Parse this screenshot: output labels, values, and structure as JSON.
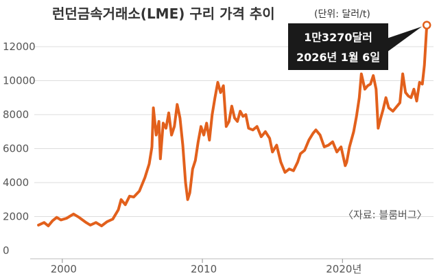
{
  "chart_data": {
    "type": "line",
    "title": "런던금속거래소(LME) 구리 가격 추이",
    "unit_label": "(단위: 달러/t)",
    "source_label": "〈자료: 블룸버그〉",
    "y_ticks": [
      "12000",
      "10000",
      "8000",
      "6000",
      "4000",
      "2000",
      "0"
    ],
    "y_tick_values": [
      12000,
      10000,
      8000,
      6000,
      4000,
      2000,
      0
    ],
    "x_ticks": [
      {
        "label": "2000",
        "value": 2000
      },
      {
        "label": "2010",
        "value": 2010
      },
      {
        "label": "2020년",
        "value": 2020
      }
    ],
    "ylim": [
      0,
      13500
    ],
    "xlim": [
      1998,
      2026.5
    ],
    "grid": true,
    "annotation": {
      "line1": "1만3270달러",
      "line2": "2026년 1월 6일",
      "x": 2026.02,
      "y": 13270
    },
    "series": [
      {
        "color": "#e2601c",
        "points": [
          [
            1998.3,
            1500
          ],
          [
            1998.7,
            1650
          ],
          [
            1999.0,
            1450
          ],
          [
            1999.3,
            1750
          ],
          [
            1999.6,
            1950
          ],
          [
            1999.9,
            1800
          ],
          [
            2000.3,
            1900
          ],
          [
            2000.8,
            2150
          ],
          [
            2001.2,
            1950
          ],
          [
            2001.7,
            1650
          ],
          [
            2002.0,
            1500
          ],
          [
            2002.4,
            1650
          ],
          [
            2002.8,
            1450
          ],
          [
            2003.2,
            1700
          ],
          [
            2003.6,
            1850
          ],
          [
            2004.0,
            2400
          ],
          [
            2004.2,
            3000
          ],
          [
            2004.5,
            2700
          ],
          [
            2004.8,
            3200
          ],
          [
            2005.1,
            3150
          ],
          [
            2005.5,
            3500
          ],
          [
            2005.9,
            4300
          ],
          [
            2006.2,
            5100
          ],
          [
            2006.4,
            6100
          ],
          [
            2006.5,
            8400
          ],
          [
            2006.7,
            6800
          ],
          [
            2006.9,
            7600
          ],
          [
            2007.0,
            5400
          ],
          [
            2007.2,
            7500
          ],
          [
            2007.4,
            7200
          ],
          [
            2007.6,
            8100
          ],
          [
            2007.8,
            6800
          ],
          [
            2008.0,
            7300
          ],
          [
            2008.2,
            8600
          ],
          [
            2008.4,
            7800
          ],
          [
            2008.6,
            6200
          ],
          [
            2008.8,
            4000
          ],
          [
            2008.95,
            3000
          ],
          [
            2009.1,
            3400
          ],
          [
            2009.3,
            4800
          ],
          [
            2009.5,
            5300
          ],
          [
            2009.7,
            6400
          ],
          [
            2009.9,
            7300
          ],
          [
            2010.1,
            6800
          ],
          [
            2010.3,
            7500
          ],
          [
            2010.5,
            6500
          ],
          [
            2010.7,
            8000
          ],
          [
            2010.9,
            9000
          ],
          [
            2011.1,
            9900
          ],
          [
            2011.3,
            9300
          ],
          [
            2011.5,
            9700
          ],
          [
            2011.7,
            7300
          ],
          [
            2011.9,
            7600
          ],
          [
            2012.1,
            8500
          ],
          [
            2012.3,
            7800
          ],
          [
            2012.5,
            7600
          ],
          [
            2012.7,
            8200
          ],
          [
            2012.9,
            7900
          ],
          [
            2013.1,
            8000
          ],
          [
            2013.3,
            7200
          ],
          [
            2013.6,
            7100
          ],
          [
            2013.9,
            7300
          ],
          [
            2014.2,
            6700
          ],
          [
            2014.5,
            7000
          ],
          [
            2014.8,
            6600
          ],
          [
            2015.0,
            5800
          ],
          [
            2015.3,
            6200
          ],
          [
            2015.6,
            5200
          ],
          [
            2015.9,
            4600
          ],
          [
            2016.2,
            4800
          ],
          [
            2016.5,
            4700
          ],
          [
            2016.8,
            5200
          ],
          [
            2017.0,
            5700
          ],
          [
            2017.3,
            5900
          ],
          [
            2017.6,
            6500
          ],
          [
            2017.9,
            6900
          ],
          [
            2018.1,
            7100
          ],
          [
            2018.4,
            6800
          ],
          [
            2018.7,
            6100
          ],
          [
            2019.0,
            6200
          ],
          [
            2019.3,
            6400
          ],
          [
            2019.6,
            5800
          ],
          [
            2019.9,
            6100
          ],
          [
            2020.2,
            5000
          ],
          [
            2020.3,
            5200
          ],
          [
            2020.5,
            6100
          ],
          [
            2020.8,
            7000
          ],
          [
            2021.0,
            7900
          ],
          [
            2021.2,
            9000
          ],
          [
            2021.35,
            10400
          ],
          [
            2021.6,
            9500
          ],
          [
            2021.8,
            9700
          ],
          [
            2022.0,
            9800
          ],
          [
            2022.2,
            10300
          ],
          [
            2022.4,
            9500
          ],
          [
            2022.55,
            7200
          ],
          [
            2022.7,
            7700
          ],
          [
            2022.9,
            8300
          ],
          [
            2023.1,
            9000
          ],
          [
            2023.3,
            8400
          ],
          [
            2023.6,
            8200
          ],
          [
            2023.9,
            8500
          ],
          [
            2024.1,
            8700
          ],
          [
            2024.3,
            10400
          ],
          [
            2024.5,
            9300
          ],
          [
            2024.7,
            9100
          ],
          [
            2024.9,
            9000
          ],
          [
            2025.1,
            9500
          ],
          [
            2025.3,
            8800
          ],
          [
            2025.5,
            9900
          ],
          [
            2025.7,
            9800
          ],
          [
            2025.85,
            10900
          ],
          [
            2026.02,
            13270
          ]
        ]
      }
    ]
  }
}
